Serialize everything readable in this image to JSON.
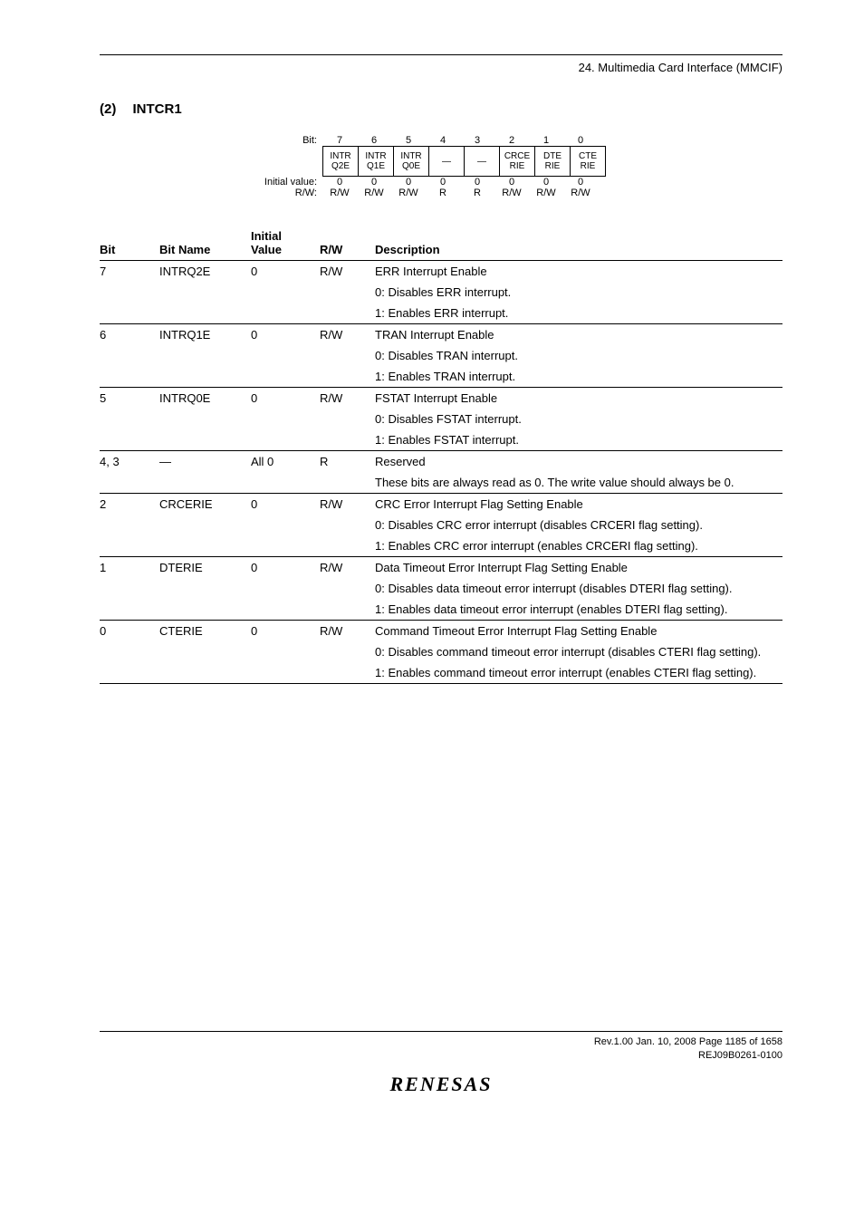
{
  "header": {
    "chapter": "24.   Multimedia Card Interface (MMCIF)"
  },
  "section": {
    "num": "(2)",
    "title": "INTCR1"
  },
  "bitdiag": {
    "label_bit": "Bit:",
    "label_iv": "Initial value:",
    "label_rw": "R/W:",
    "heads": [
      "7",
      "6",
      "5",
      "4",
      "3",
      "2",
      "1",
      "0"
    ],
    "boxes": [
      {
        "l1": "INTR",
        "l2": "Q2E"
      },
      {
        "l1": "INTR",
        "l2": "Q1E"
      },
      {
        "l1": "INTR",
        "l2": "Q0E"
      },
      {
        "l1": "—",
        "l2": ""
      },
      {
        "l1": "—",
        "l2": ""
      },
      {
        "l1": "CRCE",
        "l2": "RIE"
      },
      {
        "l1": "DTE",
        "l2": "RIE"
      },
      {
        "l1": "CTE",
        "l2": "RIE"
      }
    ],
    "iv": [
      "0",
      "0",
      "0",
      "0",
      "0",
      "0",
      "0",
      "0"
    ],
    "rw": [
      "R/W",
      "R/W",
      "R/W",
      "R",
      "R",
      "R/W",
      "R/W",
      "R/W"
    ]
  },
  "table": {
    "headers": {
      "bit": "Bit",
      "name": "Bit Name",
      "iv_l1": "Initial",
      "iv_l2": "Value",
      "rw": "R/W",
      "desc": "Description"
    },
    "rows": [
      {
        "sep": true,
        "bit": "7",
        "name": "INTRQ2E",
        "iv": "0",
        "rw": "R/W",
        "desc": "ERR Interrupt Enable"
      },
      {
        "desc": "0: Disables ERR interrupt."
      },
      {
        "desc": "1: Enables ERR interrupt."
      },
      {
        "sep": true,
        "bit": "6",
        "name": "INTRQ1E",
        "iv": "0",
        "rw": "R/W",
        "desc": "TRAN Interrupt Enable"
      },
      {
        "desc": "0: Disables TRAN interrupt."
      },
      {
        "desc": "1: Enables TRAN interrupt."
      },
      {
        "sep": true,
        "bit": "5",
        "name": "INTRQ0E",
        "iv": "0",
        "rw": "R/W",
        "desc": "FSTAT Interrupt Enable"
      },
      {
        "desc": "0: Disables FSTAT interrupt."
      },
      {
        "desc": "1: Enables FSTAT interrupt."
      },
      {
        "sep": true,
        "bit": "4, 3",
        "name": "—",
        "iv": "All 0",
        "rw": "R",
        "desc": "Reserved"
      },
      {
        "desc": "These bits are always read as 0. The write value should always be 0."
      },
      {
        "sep": true,
        "bit": "2",
        "name": "CRCERIE",
        "iv": "0",
        "rw": "R/W",
        "desc": "CRC Error Interrupt Flag Setting Enable"
      },
      {
        "desc": "0: Disables CRC error interrupt (disables CRCERI flag setting).",
        "indent": true
      },
      {
        "desc": "1: Enables CRC error interrupt (enables CRCERI flag setting).",
        "indent": true
      },
      {
        "sep": true,
        "bit": "1",
        "name": "DTERIE",
        "iv": "0",
        "rw": "R/W",
        "desc": "Data Timeout Error Interrupt Flag Setting Enable"
      },
      {
        "desc": "0: Disables data timeout error interrupt (disables DTERI flag setting).",
        "indent": true
      },
      {
        "desc": "1: Enables data timeout error interrupt (enables DTERI flag setting).",
        "indent": true
      },
      {
        "sep": true,
        "bit": "0",
        "name": "CTERIE",
        "iv": "0",
        "rw": "R/W",
        "desc": "Command Timeout Error Interrupt Flag Setting Enable"
      },
      {
        "desc": "0: Disables command timeout error interrupt (disables CTERI flag setting).",
        "indent": true
      },
      {
        "desc": "1: Enables command timeout error interrupt (enables CTERI flag setting).",
        "indent": true
      }
    ],
    "bottom_sep": true
  },
  "footer": {
    "line1": "Rev.1.00  Jan. 10, 2008  Page 1185 of 1658",
    "line2": "REJ09B0261-0100",
    "logo": "RENESAS"
  }
}
